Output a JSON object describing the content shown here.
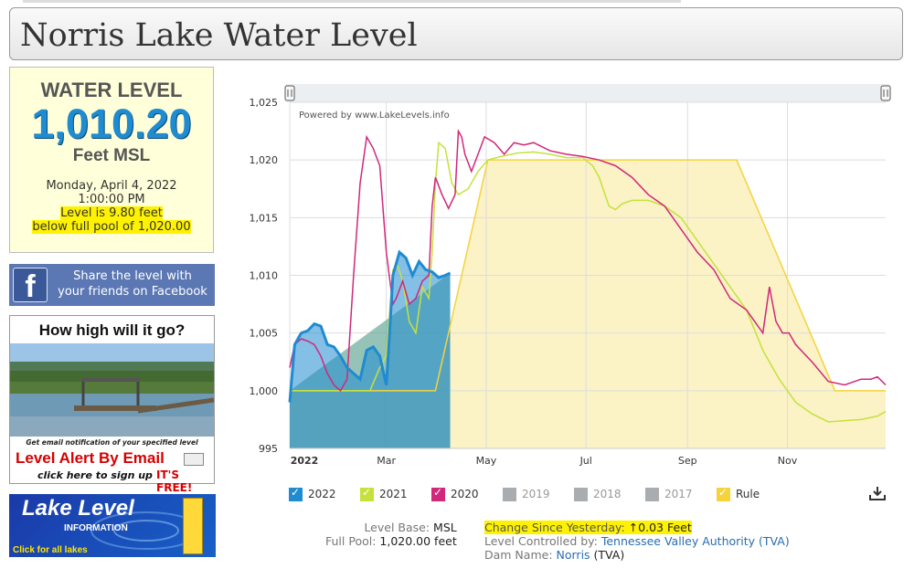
{
  "page": {
    "title": "Norris Lake Water Level"
  },
  "level_box": {
    "heading": "WATER LEVEL",
    "value": "1,010.20",
    "unit": "Feet MSL",
    "date": "Monday, April 4, 2022",
    "time": "1:00:00 PM",
    "diff_line": "Level is 9.80 feet",
    "pool_line": "below full pool of 1,020.00"
  },
  "facebook": {
    "line1": "Share the level with",
    "line2": "your friends on Facebook",
    "logo": "f"
  },
  "alert": {
    "heading": "How high will it go?",
    "sub": "Get email notification of your specified level",
    "title": "Level Alert By Email",
    "click": "click here to sign up",
    "free": "IT'S FREE!"
  },
  "lake_level_info": {
    "title": "Lake Level",
    "subtitle": "INFORMATION",
    "link": "Click for all lakes"
  },
  "chart_data": {
    "type": "area",
    "watermark": "Powered by www.LakeLevels.info",
    "y_ticks": [
      "1,025",
      "1,020",
      "1,015",
      "1,010",
      "1,005",
      "1,000",
      "995"
    ],
    "ylim": [
      995,
      1025
    ],
    "x_labels": [
      "2022",
      "Mar",
      "May",
      "Jul",
      "Sep",
      "Nov"
    ],
    "x_unit": "day of year",
    "x_label_days": [
      1,
      60,
      121,
      182,
      244,
      305
    ],
    "xlim": [
      1,
      365
    ],
    "grid": true,
    "colors": {
      "2022": "#1f8bd0",
      "2021": "#c5e23c",
      "2020": "#d0287a",
      "Rule": "#f5d33c",
      "rule_fill": "#faf0bc",
      "gray": "#a9adb0"
    },
    "series": [
      {
        "name": "2022",
        "points": [
          [
            1,
            999
          ],
          [
            4,
            1004
          ],
          [
            8,
            1005
          ],
          [
            12,
            1005.2
          ],
          [
            16,
            1005.8
          ],
          [
            20,
            1005.6
          ],
          [
            24,
            1004
          ],
          [
            28,
            1003.8
          ],
          [
            32,
            1003
          ],
          [
            36,
            1002
          ],
          [
            40,
            1001.5
          ],
          [
            44,
            1001
          ],
          [
            48,
            1003.5
          ],
          [
            52,
            1003.8
          ],
          [
            56,
            1003
          ],
          [
            60,
            1000.5
          ],
          [
            62,
            1005
          ],
          [
            64,
            1010
          ],
          [
            68,
            1012
          ],
          [
            72,
            1011.5
          ],
          [
            76,
            1010
          ],
          [
            80,
            1011.2
          ],
          [
            84,
            1010.5
          ],
          [
            88,
            1010.3
          ],
          [
            92,
            1009.8
          ],
          [
            96,
            1010
          ],
          [
            99,
            1010.2
          ]
        ]
      },
      {
        "name": "2021",
        "points": [
          [
            1,
            1000
          ],
          [
            50,
            1000
          ],
          [
            56,
            1002
          ],
          [
            60,
            1003
          ],
          [
            64,
            1010.5
          ],
          [
            67,
            1010.8
          ],
          [
            70,
            1009.5
          ],
          [
            74,
            1006
          ],
          [
            78,
            1005
          ],
          [
            82,
            1009
          ],
          [
            86,
            1008
          ],
          [
            88,
            1012
          ],
          [
            90,
            1018
          ],
          [
            92,
            1021.5
          ],
          [
            96,
            1021
          ],
          [
            100,
            1018
          ],
          [
            104,
            1017
          ],
          [
            110,
            1017.5
          ],
          [
            116,
            1019
          ],
          [
            122,
            1020
          ],
          [
            130,
            1020.3
          ],
          [
            140,
            1020.6
          ],
          [
            150,
            1020.7
          ],
          [
            160,
            1020.5
          ],
          [
            170,
            1020.2
          ],
          [
            180,
            1020.2
          ],
          [
            186,
            1019.5
          ],
          [
            190,
            1018.5
          ],
          [
            196,
            1016
          ],
          [
            200,
            1015.7
          ],
          [
            204,
            1016.2
          ],
          [
            210,
            1016.5
          ],
          [
            220,
            1016.5
          ],
          [
            230,
            1016
          ],
          [
            240,
            1015
          ],
          [
            250,
            1013
          ],
          [
            260,
            1011
          ],
          [
            270,
            1009
          ],
          [
            280,
            1007
          ],
          [
            290,
            1003.5
          ],
          [
            300,
            1001
          ],
          [
            310,
            999
          ],
          [
            320,
            998
          ],
          [
            330,
            997.3
          ],
          [
            340,
            997.4
          ],
          [
            350,
            997.5
          ],
          [
            360,
            997.8
          ],
          [
            365,
            998.2
          ]
        ]
      },
      {
        "name": "2020",
        "points": [
          [
            1,
            1002
          ],
          [
            4,
            1004
          ],
          [
            8,
            1004.5
          ],
          [
            12,
            1004.3
          ],
          [
            16,
            1004
          ],
          [
            20,
            1003
          ],
          [
            24,
            1001.5
          ],
          [
            28,
            1000.5
          ],
          [
            32,
            1000
          ],
          [
            36,
            1001
          ],
          [
            40,
            1010
          ],
          [
            44,
            1018
          ],
          [
            48,
            1022
          ],
          [
            52,
            1021
          ],
          [
            56,
            1019.5
          ],
          [
            60,
            1012
          ],
          [
            64,
            1007.5
          ],
          [
            66,
            1008
          ],
          [
            70,
            1009.5
          ],
          [
            74,
            1007.5
          ],
          [
            78,
            1008
          ],
          [
            82,
            1009.5
          ],
          [
            86,
            1010
          ],
          [
            88,
            1016
          ],
          [
            90,
            1018.5
          ],
          [
            94,
            1017
          ],
          [
            98,
            1015.8
          ],
          [
            102,
            1017
          ],
          [
            104,
            1022.5
          ],
          [
            106,
            1022
          ],
          [
            108,
            1020.5
          ],
          [
            112,
            1019
          ],
          [
            116,
            1020.5
          ],
          [
            120,
            1022
          ],
          [
            126,
            1021.5
          ],
          [
            132,
            1020.5
          ],
          [
            138,
            1021.5
          ],
          [
            144,
            1021.3
          ],
          [
            150,
            1021.5
          ],
          [
            160,
            1020.8
          ],
          [
            170,
            1020.5
          ],
          [
            180,
            1020.3
          ],
          [
            190,
            1020
          ],
          [
            200,
            1019.5
          ],
          [
            210,
            1018.5
          ],
          [
            220,
            1017
          ],
          [
            230,
            1016
          ],
          [
            240,
            1014
          ],
          [
            250,
            1012
          ],
          [
            260,
            1010.5
          ],
          [
            270,
            1008
          ],
          [
            280,
            1007
          ],
          [
            290,
            1005
          ],
          [
            294,
            1009
          ],
          [
            298,
            1006
          ],
          [
            302,
            1005
          ],
          [
            306,
            1005
          ],
          [
            310,
            1004
          ],
          [
            320,
            1002.5
          ],
          [
            330,
            1000.8
          ],
          [
            340,
            1000.5
          ],
          [
            350,
            1001
          ],
          [
            356,
            1001
          ],
          [
            360,
            1001.2
          ],
          [
            365,
            1000.5
          ]
        ]
      },
      {
        "name": "2019",
        "points": []
      },
      {
        "name": "2018",
        "points": []
      },
      {
        "name": "2017",
        "points": []
      },
      {
        "name": "Rule",
        "points": [
          [
            1,
            1000
          ],
          [
            90,
            1000
          ],
          [
            122,
            1020
          ],
          [
            274,
            1020
          ],
          [
            334,
            1000
          ],
          [
            365,
            1000
          ]
        ]
      }
    ],
    "legend": [
      {
        "name": "2022",
        "on": true,
        "color": "#1f8bd0"
      },
      {
        "name": "2021",
        "on": true,
        "color": "#c5e23c"
      },
      {
        "name": "2020",
        "on": true,
        "color": "#d0287a"
      },
      {
        "name": "2019",
        "on": false,
        "color": "#a9adb0"
      },
      {
        "name": "2018",
        "on": false,
        "color": "#a9adb0"
      },
      {
        "name": "2017",
        "on": false,
        "color": "#a9adb0"
      },
      {
        "name": "Rule",
        "on": true,
        "color": "#f5d33c"
      }
    ]
  },
  "info": {
    "level_base_label": "Level Base:",
    "level_base": "MSL",
    "full_pool_label": "Full Pool:",
    "full_pool": "1,020.00 feet",
    "change_label": "Change Since Yesterday:",
    "change_arrow": "↑",
    "change_value": "0.03 Feet",
    "controlled_label": "Level Controlled by:",
    "controlled_value": "Tennessee Valley Authority (TVA)",
    "dam_label": "Dam Name:",
    "dam_link": "Norris",
    "dam_suffix": "(TVA)"
  }
}
